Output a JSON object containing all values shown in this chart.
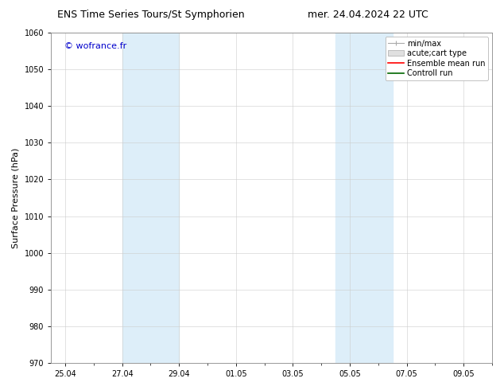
{
  "title_left": "ENS Time Series Tours/St Symphorien",
  "title_right": "mer. 24.04.2024 22 UTC",
  "ylabel": "Surface Pressure (hPa)",
  "ylim": [
    970,
    1060
  ],
  "yticks": [
    970,
    980,
    990,
    1000,
    1010,
    1020,
    1030,
    1040,
    1050,
    1060
  ],
  "xtick_labels": [
    "25.04",
    "27.04",
    "29.04",
    "01.05",
    "03.05",
    "05.05",
    "07.05",
    "09.05"
  ],
  "xtick_positions": [
    0,
    2,
    4,
    6,
    8,
    10,
    12,
    14
  ],
  "xlim": [
    -0.5,
    15.0
  ],
  "shaded_regions": [
    {
      "start": 2,
      "end": 4,
      "color": "#ddeef9"
    },
    {
      "start": 9.5,
      "end": 11.5,
      "color": "#ddeef9"
    }
  ],
  "watermark": "© wofrance.fr",
  "watermark_color": "#0000cc",
  "legend_entries": [
    {
      "label": "min/max",
      "color": "#aaaaaa",
      "type": "errorbar"
    },
    {
      "label": "acute;cart type",
      "color": "#cccccc",
      "type": "box"
    },
    {
      "label": "Ensemble mean run",
      "color": "#ff0000",
      "type": "line"
    },
    {
      "label": "Controll run",
      "color": "#006600",
      "type": "line"
    }
  ],
  "bg_color": "#ffffff",
  "grid_color": "#cccccc",
  "title_fontsize": 9,
  "axis_fontsize": 8,
  "tick_fontsize": 7,
  "legend_fontsize": 7,
  "watermark_fontsize": 8
}
